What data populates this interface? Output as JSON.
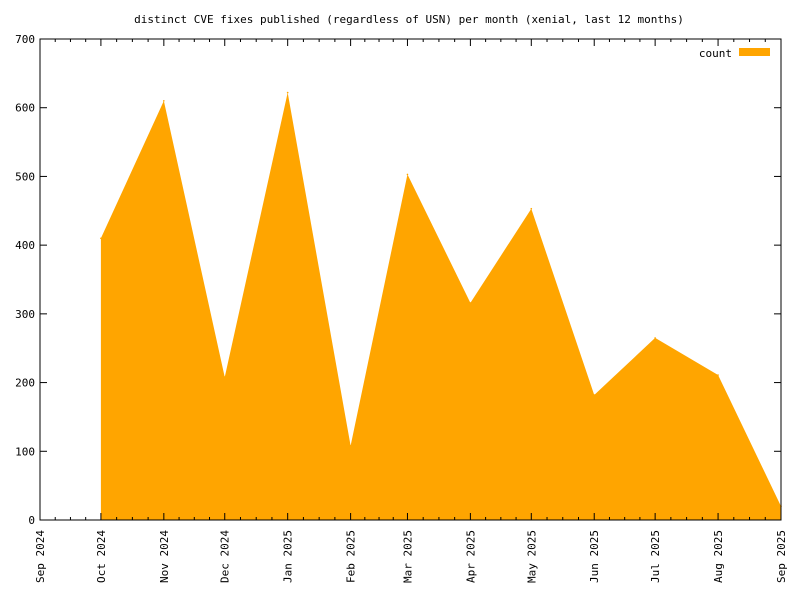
{
  "chart_data": {
    "type": "area",
    "title": "distinct CVE fixes published (regardless of USN) per month (xenial, last 12 months)",
    "xlabel": "",
    "ylabel": "",
    "x_ticks": [
      "Sep 2024",
      "Oct 2024",
      "Nov 2024",
      "Dec 2024",
      "Jan 2025",
      "Feb 2025",
      "Mar 2025",
      "Apr 2025",
      "May 2025",
      "Jun 2025",
      "Jul 2025",
      "Aug 2025",
      "Sep 2025"
    ],
    "y_ticks": [
      0,
      100,
      200,
      300,
      400,
      500,
      600,
      700
    ],
    "ylim": [
      0,
      700
    ],
    "xlim": [
      "2024-09-01",
      "2025-09-01"
    ],
    "grid": false,
    "legend_position": "top-right",
    "series": [
      {
        "name": "count",
        "color": "#ffa500",
        "points": [
          {
            "x": "2024-10-01",
            "y": 410
          },
          {
            "x": "2024-11-01",
            "y": 610
          },
          {
            "x": "2024-12-01",
            "y": 208
          },
          {
            "x": "2025-01-01",
            "y": 622
          },
          {
            "x": "2025-02-01",
            "y": 108
          },
          {
            "x": "2025-03-01",
            "y": 503
          },
          {
            "x": "2025-04-01",
            "y": 316
          },
          {
            "x": "2025-05-01",
            "y": 453
          },
          {
            "x": "2025-06-01",
            "y": 182
          },
          {
            "x": "2025-07-01",
            "y": 265
          },
          {
            "x": "2025-08-01",
            "y": 211
          },
          {
            "x": "2025-09-01",
            "y": 20
          }
        ]
      }
    ]
  }
}
